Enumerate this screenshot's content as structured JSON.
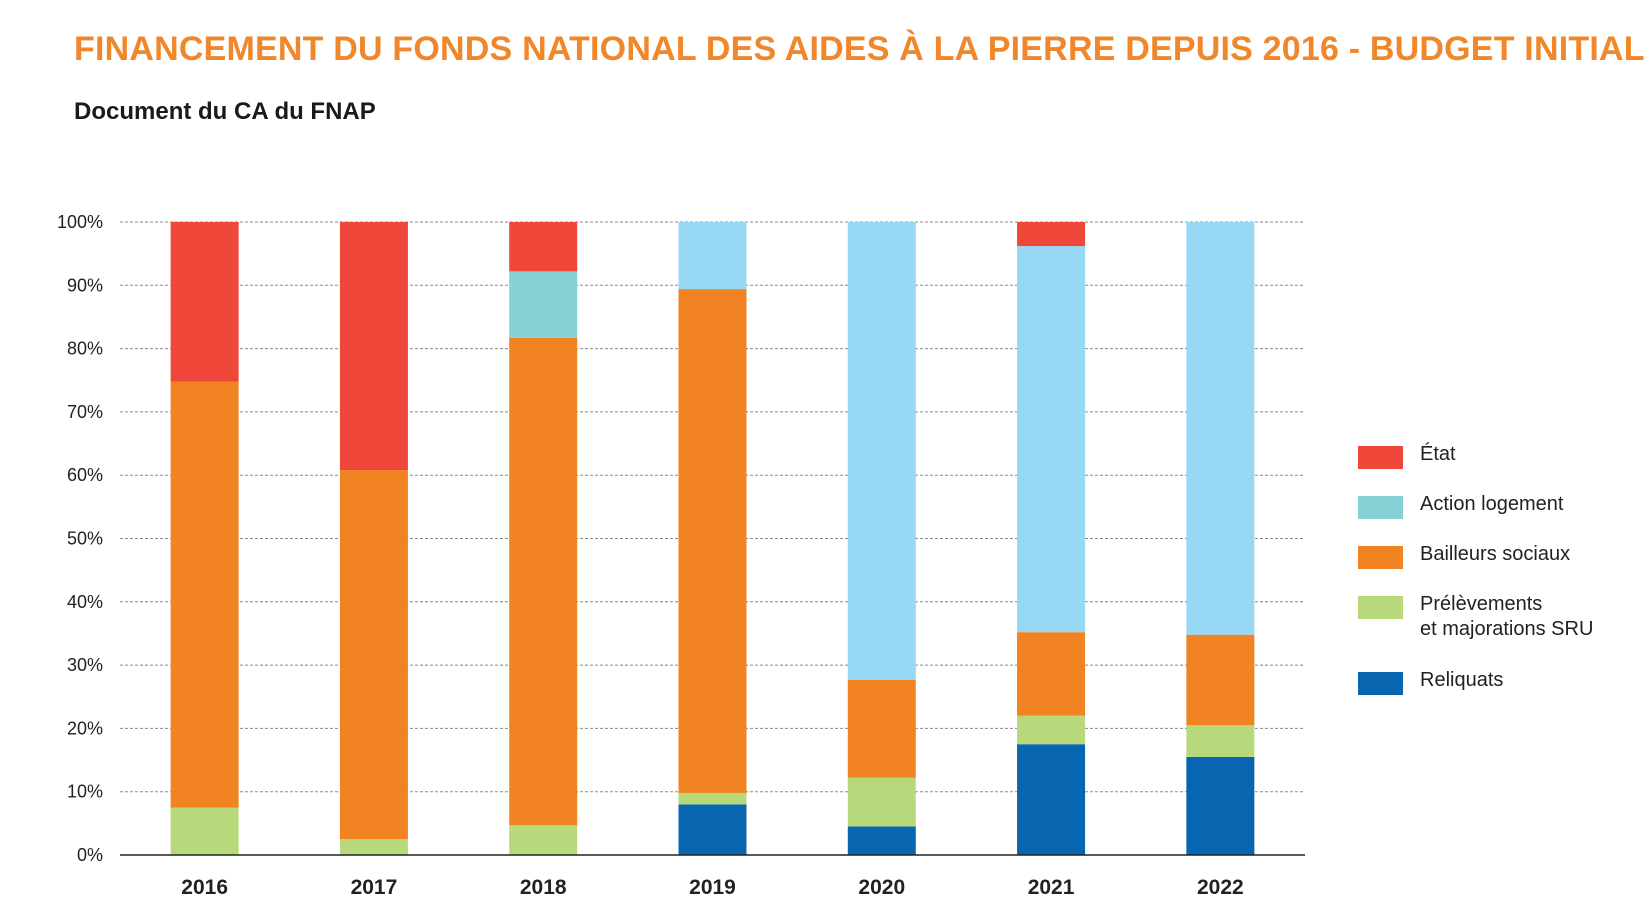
{
  "header": {
    "title": "FINANCEMENT DU FONDS NATIONAL DES AIDES À LA PIERRE DEPUIS 2016 - BUDGET INITIAL",
    "subtitle": "Document du CA du FNAP"
  },
  "colors": {
    "title": "#f0872b",
    "Etat": "#ef473a",
    "Action logement": "#86d0d6",
    "Action logement (light)": "#97d8f4",
    "Bailleurs sociaux": "#f28322",
    "Prelevements": "#b7d97c",
    "Reliquats": "#0866b1"
  },
  "chart_data": {
    "type": "bar",
    "stacked": true,
    "categories": [
      "2016",
      "2017",
      "2018",
      "2019",
      "2020",
      "2021",
      "2022"
    ],
    "y_tick_labels": [
      "0%",
      "10%",
      "20%",
      "30%",
      "40%",
      "50%",
      "60%",
      "70%",
      "80%",
      "90%",
      "100%"
    ],
    "ylim": [
      0,
      100
    ],
    "grid": true,
    "legend_position": "right",
    "series": [
      {
        "name": "Reliquats",
        "color": "#0866b1",
        "values": [
          0,
          0,
          0,
          8,
          4.5,
          17.5,
          15.5
        ]
      },
      {
        "name": "Prélèvements\net majorations SRU",
        "color": "#b7d97c",
        "values": [
          7.5,
          2.5,
          4.7,
          1.8,
          7.7,
          4.5,
          5
        ]
      },
      {
        "name": "Bailleurs sociaux",
        "color": "#f28322",
        "values": [
          67.3,
          58.3,
          77,
          79.6,
          15.5,
          13.2,
          14.3
        ]
      },
      {
        "name": "Action logement",
        "color": "#86d0d6",
        "values": [
          0,
          0,
          10.5,
          10.6,
          72.3,
          61,
          65.2
        ],
        "bar_colors": [
          "#86d0d6",
          "#86d0d6",
          "#86d0d6",
          "#97d8f4",
          "#97d8f4",
          "#97d8f4",
          "#97d8f4"
        ]
      },
      {
        "name": "État",
        "color": "#ef473a",
        "values": [
          25.2,
          39.2,
          7.8,
          0,
          0,
          3.8,
          0
        ]
      }
    ],
    "legend_order": [
      "État",
      "Action logement",
      "Bailleurs sociaux",
      "Prélèvements\net majorations SRU",
      "Reliquats"
    ]
  }
}
